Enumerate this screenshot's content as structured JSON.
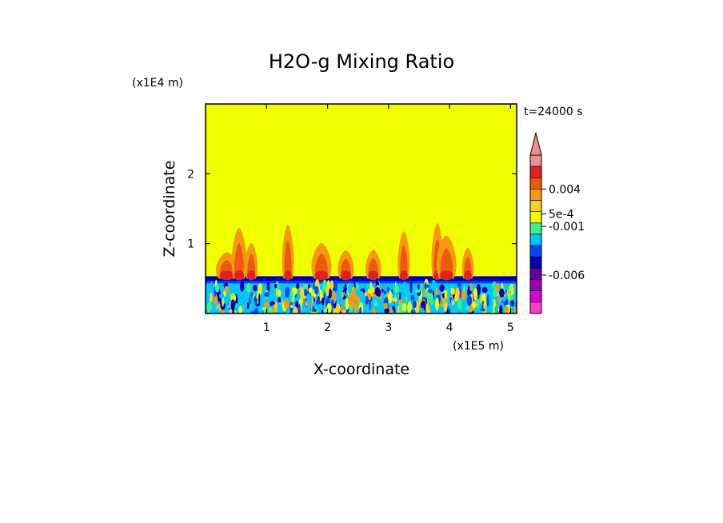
{
  "chart_data": {
    "type": "heatmap",
    "title": "H2O-g Mixing Ratio",
    "xlabel": "X-coordinate",
    "ylabel": "Z-coordinate",
    "x_unit": "(x1E5 m)",
    "y_unit": "(x1E4 m)",
    "time_label": "t=24000 s",
    "xlim": [
      0,
      5.1
    ],
    "ylim": [
      0,
      3.0
    ],
    "x_ticks": [
      "1",
      "2",
      "3",
      "4",
      "5"
    ],
    "y_ticks": [
      "1",
      "2"
    ],
    "colorbar": {
      "labels": [
        "0.004",
        "5e-4",
        "-0.001",
        "-0.006"
      ],
      "colors": [
        "#ee9090",
        "#e0231e",
        "#ec5a10",
        "#f69810",
        "#ffd21e",
        "#f0ff00",
        "#3cf08c",
        "#00c8ff",
        "#0046ff",
        "#0000b4",
        "#6400a0",
        "#a000b4",
        "#dc00dc",
        "#ff3cc8"
      ]
    },
    "fields": {
      "background": "#f0ff00",
      "boundary_layer_top": 0.5,
      "plume_x": [
        0.35,
        0.55,
        0.75,
        1.35,
        1.9,
        2.3,
        2.75,
        3.25,
        3.8,
        3.95,
        4.3
      ]
    }
  }
}
